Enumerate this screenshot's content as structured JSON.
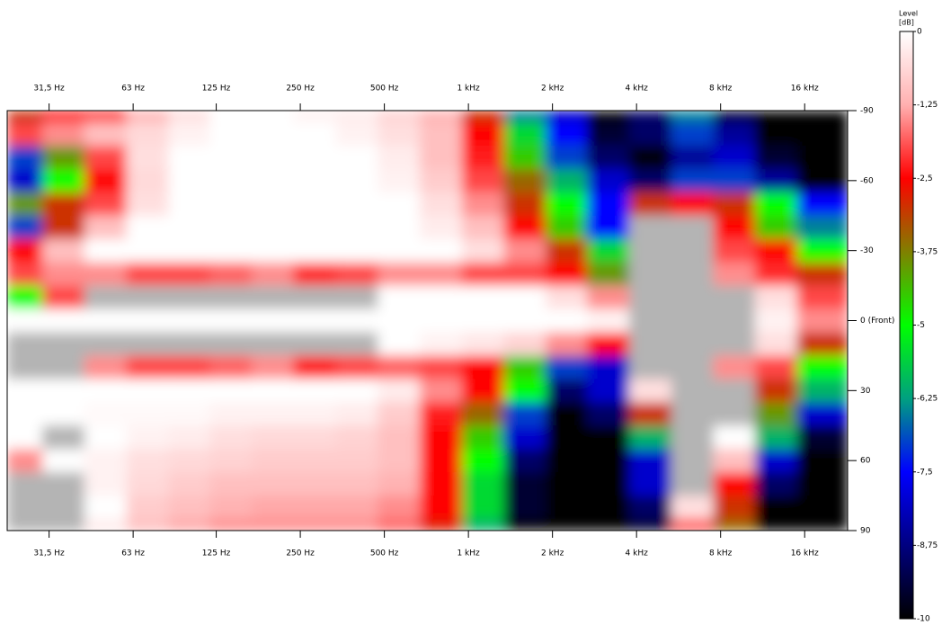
{
  "chart_data": {
    "type": "heatmap",
    "xscale": "log",
    "xlim": [
      22.3,
      22800
    ],
    "xticks": [
      {
        "value": 31.5,
        "label": "31,5 Hz"
      },
      {
        "value": 63,
        "label": "63 Hz"
      },
      {
        "value": 125,
        "label": "125 Hz"
      },
      {
        "value": 250,
        "label": "250 Hz"
      },
      {
        "value": 500,
        "label": "500 Hz"
      },
      {
        "value": 1000,
        "label": "1 kHz"
      },
      {
        "value": 2000,
        "label": "2 kHz"
      },
      {
        "value": 4000,
        "label": "4 kHz"
      },
      {
        "value": 8000,
        "label": "8 kHz"
      },
      {
        "value": 16000,
        "label": "16 kHz"
      }
    ],
    "ylim": [
      -90,
      90
    ],
    "yticks": [
      -90,
      -60,
      -30,
      {
        "value": 0,
        "label": "0 (Front)"
      },
      30,
      60,
      90
    ],
    "x": [
      25,
      35.5,
      50,
      71,
      100,
      140,
      200,
      280,
      400,
      560,
      800,
      1120,
      1600,
      2240,
      3150,
      4500,
      6300,
      9000,
      12500,
      18000
    ],
    "y": [
      -90,
      -80,
      -70,
      -60,
      -50,
      -40,
      -30,
      -20,
      -10,
      0,
      10,
      20,
      30,
      40,
      50,
      60,
      70,
      80,
      90
    ],
    "z": [
      [
        -3,
        -2.5,
        -2.3,
        -1.2,
        -0.5,
        0,
        0,
        -0.2,
        -0.3,
        -0.7,
        -1.2,
        -3,
        -6.5,
        -8,
        -10,
        -9,
        -6.5,
        -9.5,
        -10,
        -10
      ],
      [
        -2,
        -1.5,
        -1,
        -0.6,
        -0.2,
        0,
        0,
        0,
        -0.2,
        -0.5,
        -1,
        -2.5,
        -5.5,
        -7.5,
        -9.5,
        -9,
        -7,
        -8.5,
        -10,
        -10
      ],
      [
        -7,
        -4,
        -2,
        -0.5,
        0,
        0,
        0,
        0,
        0,
        -0.3,
        -1,
        -2.3,
        -4.5,
        -7,
        -9,
        -10,
        -8.5,
        -8,
        -9.5,
        -10
      ],
      [
        -8,
        -5,
        -2.5,
        -0.6,
        0,
        0,
        0,
        0,
        0,
        -0.2,
        -0.8,
        -2,
        -3.5,
        -6,
        -8,
        -9,
        -7,
        -7,
        -8.5,
        -10
      ],
      [
        -4,
        -3,
        -2,
        -0.5,
        0,
        0,
        0,
        0,
        0,
        0,
        -0.5,
        -1.5,
        -3,
        -5,
        -7.5,
        -3,
        -2.5,
        -3,
        -5,
        -7.5
      ],
      [
        -7,
        -3,
        -1,
        0,
        0,
        0,
        0,
        0,
        0,
        0,
        -0.3,
        -1,
        -2.5,
        -4.5,
        -7.5,
        0.5,
        0.3,
        -2.5,
        -4.5,
        -6.5
      ],
      [
        -2.5,
        -1,
        0,
        0,
        0,
        0,
        0,
        0,
        0,
        0,
        0,
        -0.5,
        -1.5,
        -3,
        -5.5,
        0.5,
        0.5,
        -2,
        -2.5,
        -5
      ],
      [
        -2,
        -1.5,
        -1.5,
        -2,
        -2,
        -1.8,
        -1.5,
        -2.2,
        -2,
        -1.5,
        -1.5,
        -2,
        -2,
        -2.5,
        -4,
        0.5,
        0.5,
        -1.5,
        -2.2,
        -3
      ],
      [
        -5,
        -2,
        0.3,
        0.3,
        0.3,
        0.2,
        0.2,
        0.3,
        0.2,
        0,
        0,
        0,
        0,
        -0.5,
        -1.5,
        0.5,
        0.5,
        0.3,
        -0.5,
        -2
      ],
      [
        0,
        0,
        0,
        0,
        0,
        0,
        0,
        0,
        0,
        0,
        0,
        0,
        0,
        0,
        -0.2,
        0.5,
        0.5,
        0.3,
        -0.2,
        -1.5
      ],
      [
        0.5,
        0.5,
        0.4,
        0.3,
        0.3,
        0.3,
        0.3,
        0.3,
        0.2,
        0,
        -0.2,
        -0.4,
        -0.7,
        -1.5,
        -2.5,
        0.5,
        0.5,
        0.3,
        -0.5,
        -3
      ],
      [
        0.5,
        0.3,
        -1.5,
        -2,
        -2,
        -1.8,
        -1.5,
        -2.3,
        -2,
        -1.8,
        -2,
        -2.5,
        -4.5,
        -7,
        -8,
        0.5,
        0.5,
        -1.5,
        -2,
        -5
      ],
      [
        0,
        0,
        0,
        0,
        0,
        0,
        0,
        0,
        0,
        -0.3,
        -1.5,
        -2.5,
        -5,
        -9,
        -8,
        -0.5,
        0.5,
        0.3,
        -3,
        -6
      ],
      [
        0,
        0,
        -0.1,
        -0.1,
        -0.1,
        -0.2,
        -0.2,
        -0.2,
        -0.3,
        -0.8,
        -2.3,
        -3.5,
        -7,
        -10,
        -9,
        -3,
        0.5,
        0.5,
        -4,
        -8
      ],
      [
        0,
        0.3,
        0,
        -0.2,
        -0.3,
        -0.5,
        -0.6,
        -0.6,
        -0.7,
        -1,
        -2.5,
        -4.5,
        -8,
        -10,
        -10,
        -6,
        0.5,
        0,
        -6,
        -9.5
      ],
      [
        -1.5,
        0,
        -0.2,
        -0.5,
        -0.6,
        -0.7,
        -0.8,
        -0.8,
        -0.8,
        -1,
        -2.5,
        -5,
        -9,
        -10,
        -10,
        -8,
        0.3,
        -1,
        -8,
        -10
      ],
      [
        0.5,
        0.5,
        -0.2,
        -0.6,
        -0.8,
        -1,
        -1,
        -1,
        -1,
        -1.2,
        -2.5,
        -5.5,
        -9.5,
        -10,
        -10,
        -8,
        0.5,
        -2.5,
        -9,
        -10
      ],
      [
        0.5,
        0.5,
        0,
        -0.8,
        -1,
        -1.2,
        -1.3,
        -1.3,
        -1.3,
        -1.5,
        -2.5,
        -5.5,
        -9.5,
        -10,
        -10,
        -9,
        -0.5,
        -3,
        -10,
        -10
      ],
      [
        0.5,
        0.5,
        -0.3,
        -1,
        -1.3,
        -1.5,
        -1.5,
        -1.5,
        -1.5,
        -1.8,
        -2.8,
        -6,
        -10,
        -10,
        -10,
        -9.5,
        -2,
        -3.5,
        -10,
        -10
      ]
    ],
    "zlim": [
      -10,
      0
    ],
    "colorbar_title": [
      "Level",
      "[dB]"
    ],
    "zticks": [
      0,
      {
        "value": -1.25,
        "label": "-1,25"
      },
      {
        "value": -2.5,
        "label": "-2,5"
      },
      {
        "value": -3.75,
        "label": "-3,75"
      },
      -5,
      {
        "value": -6.25,
        "label": "-6,25"
      },
      {
        "value": -7.5,
        "label": "-7,5"
      },
      {
        "value": -8.75,
        "label": "-8,75"
      },
      -10
    ],
    "colormap": [
      {
        "value": 0,
        "color": "#ffffff"
      },
      {
        "value": -1.25,
        "color": "#ffb0b0"
      },
      {
        "value": -2.5,
        "color": "#ff0000"
      },
      {
        "value": -3.75,
        "color": "#808000"
      },
      {
        "value": -5,
        "color": "#00ff00"
      },
      {
        "value": -6.25,
        "color": "#00a080"
      },
      {
        "value": -7.5,
        "color": "#0000ff"
      },
      {
        "value": -8.75,
        "color": "#000080"
      },
      {
        "value": -10,
        "color": "#000000"
      }
    ],
    "over_color": "#b4b4b4"
  }
}
